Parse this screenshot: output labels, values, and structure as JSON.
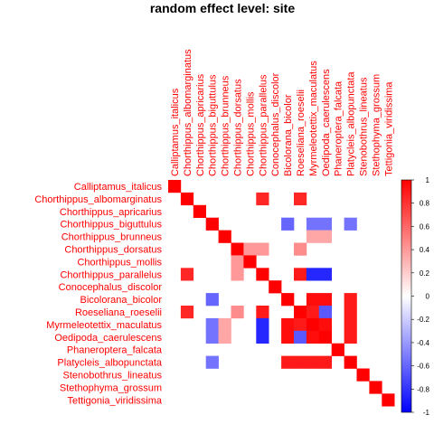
{
  "chart_data": {
    "type": "heatmap",
    "title": "random effect level: site",
    "labels": [
      "Calliptamus_italicus",
      "Chorthippus_albomarginatus",
      "Chorthippus_apricarius",
      "Chorthippus_biguttulus",
      "Chorthippus_brunneus",
      "Chorthippus_dorsatus",
      "Chorthippus_mollis",
      "Chorthippus_parallelus",
      "Conocephalus_discolor",
      "Bicolorana_bicolor",
      "Roeseliana_roeselii",
      "Myrmeleotettix_maculatus",
      "Oedipoda_caerulescens",
      "Phaneroptera_falcata",
      "Platycleis_albopunctata",
      "Stenobothrus_lineatus",
      "Stethophyma_grossum",
      "Tettigonia_viridissima"
    ],
    "matrix": [
      [
        1,
        0,
        0,
        0,
        0,
        0,
        0,
        0,
        0,
        0,
        0,
        0,
        0,
        0,
        0,
        0,
        0,
        0
      ],
      [
        0,
        1,
        0,
        0,
        0,
        0,
        0,
        0.85,
        0,
        0,
        0.85,
        0,
        0,
        0,
        0,
        0,
        0,
        0
      ],
      [
        0,
        0,
        1,
        0,
        0,
        0,
        0,
        0,
        0,
        0,
        0,
        0,
        0,
        0,
        0,
        0,
        0,
        0
      ],
      [
        0,
        0,
        0,
        1,
        0,
        0,
        0,
        0,
        0,
        -0.6,
        0,
        -0.55,
        -0.55,
        0,
        -0.55,
        0,
        0,
        0
      ],
      [
        0,
        0,
        0,
        0,
        1,
        0,
        0,
        0,
        0,
        0,
        0,
        0.35,
        0.35,
        0,
        0,
        0,
        0,
        0
      ],
      [
        0,
        0,
        0,
        0,
        0,
        1,
        0.4,
        0.4,
        0,
        0,
        0.45,
        0,
        0,
        0,
        0,
        0,
        0,
        0
      ],
      [
        0,
        0,
        0,
        0,
        0,
        0.4,
        1,
        0,
        0,
        0,
        0,
        0,
        0,
        0,
        0,
        0,
        0,
        0
      ],
      [
        0,
        0.85,
        0,
        0,
        0,
        0.4,
        0,
        1,
        0,
        0,
        0.9,
        -0.85,
        -0.85,
        0,
        0,
        0,
        0,
        0
      ],
      [
        0,
        0,
        0,
        0,
        0,
        0,
        0,
        0,
        1,
        0,
        0,
        0,
        0,
        0,
        0,
        0,
        0,
        0
      ],
      [
        0,
        0,
        0,
        -0.6,
        0,
        0,
        0,
        0,
        0,
        1,
        0,
        0.95,
        0.95,
        0,
        0.9,
        0,
        0,
        0
      ],
      [
        0,
        0.85,
        0,
        0,
        0,
        0.45,
        0,
        0.9,
        0,
        0,
        1,
        0.9,
        -0.65,
        0,
        0.9,
        0,
        0,
        0
      ],
      [
        0,
        0,
        0,
        -0.55,
        0.35,
        0,
        0,
        -0.85,
        0,
        0.95,
        0.9,
        1,
        0.95,
        0,
        0.9,
        0,
        0,
        0
      ],
      [
        0,
        0,
        0,
        -0.55,
        0.35,
        0,
        0,
        -0.85,
        0,
        0.95,
        -0.65,
        0.95,
        1,
        0,
        0.9,
        0,
        0,
        0
      ],
      [
        0,
        0,
        0,
        0,
        0,
        0,
        0,
        0,
        0,
        0,
        0,
        0,
        0,
        1,
        0,
        0,
        0,
        0
      ],
      [
        0,
        0,
        0,
        -0.55,
        0,
        0,
        0,
        0,
        0,
        0.9,
        0.9,
        0.9,
        0.9,
        0,
        1,
        0,
        0,
        0
      ],
      [
        0,
        0,
        0,
        0,
        0,
        0,
        0,
        0,
        0,
        0,
        0,
        0,
        0,
        0,
        0,
        1,
        0,
        0
      ],
      [
        0,
        0,
        0,
        0,
        0,
        0,
        0,
        0,
        0,
        0,
        0,
        0,
        0,
        0,
        0,
        0,
        1,
        0
      ],
      [
        0,
        0,
        0,
        0,
        0,
        0,
        0,
        0,
        0,
        0,
        0,
        0,
        0,
        0,
        0,
        0,
        0,
        1
      ]
    ],
    "color_scale": {
      "low": "#0000ff",
      "mid": "#ffffff",
      "high": "#ff0000",
      "range": [
        -1,
        1
      ]
    },
    "colorbar_ticks": [
      "1",
      "0.8",
      "0.6",
      "0.4",
      "0.2",
      "0",
      "-0.2",
      "-0.4",
      "-0.6",
      "-0.8",
      "-1"
    ],
    "label_color": "#ff0000",
    "legend_position": "right"
  }
}
